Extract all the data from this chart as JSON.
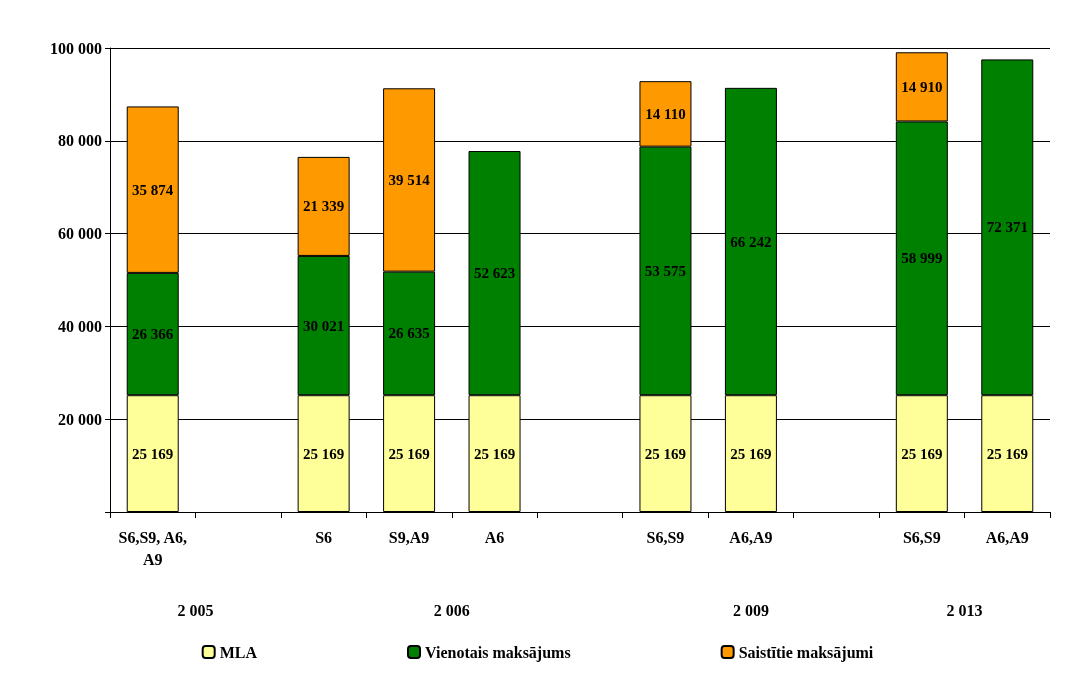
{
  "chart_data": {
    "type": "bar",
    "stacked": true,
    "categories": [
      "S6,S9, A6,A9",
      null,
      "S6",
      "S9,A9",
      "A6",
      null,
      "S6,S9",
      "A6,A9",
      null,
      "S6,S9",
      "A6,A9"
    ],
    "series": [
      {
        "name": "MLA",
        "color": "#ffff99",
        "values": [
          25169,
          null,
          25169,
          25169,
          25169,
          null,
          25169,
          25169,
          null,
          25169,
          25169
        ]
      },
      {
        "name": "Vienotais maksājums",
        "color": "#008000",
        "values": [
          26366,
          null,
          30021,
          26635,
          52623,
          null,
          53575,
          66242,
          null,
          58999,
          72371
        ]
      },
      {
        "name": "Saistītie maksājumi",
        "color": "#ff9900",
        "values": [
          35874,
          null,
          21339,
          39514,
          null,
          null,
          14110,
          null,
          null,
          14910,
          null
        ]
      }
    ],
    "ylim": [
      0,
      100000
    ],
    "yticks": [
      {
        "value": 0,
        "label": null
      },
      {
        "value": 20000,
        "label": "20 000"
      },
      {
        "value": 40000,
        "label": "40 000"
      },
      {
        "value": 60000,
        "label": "60 000"
      },
      {
        "value": 80000,
        "label": "80 000"
      },
      {
        "value": 100000,
        "label": "100 000"
      }
    ],
    "grid": "y",
    "legend": "bottom",
    "data_labels": true,
    "annotations": [
      "2 005",
      "2 006",
      "2 009",
      "2 013"
    ]
  }
}
